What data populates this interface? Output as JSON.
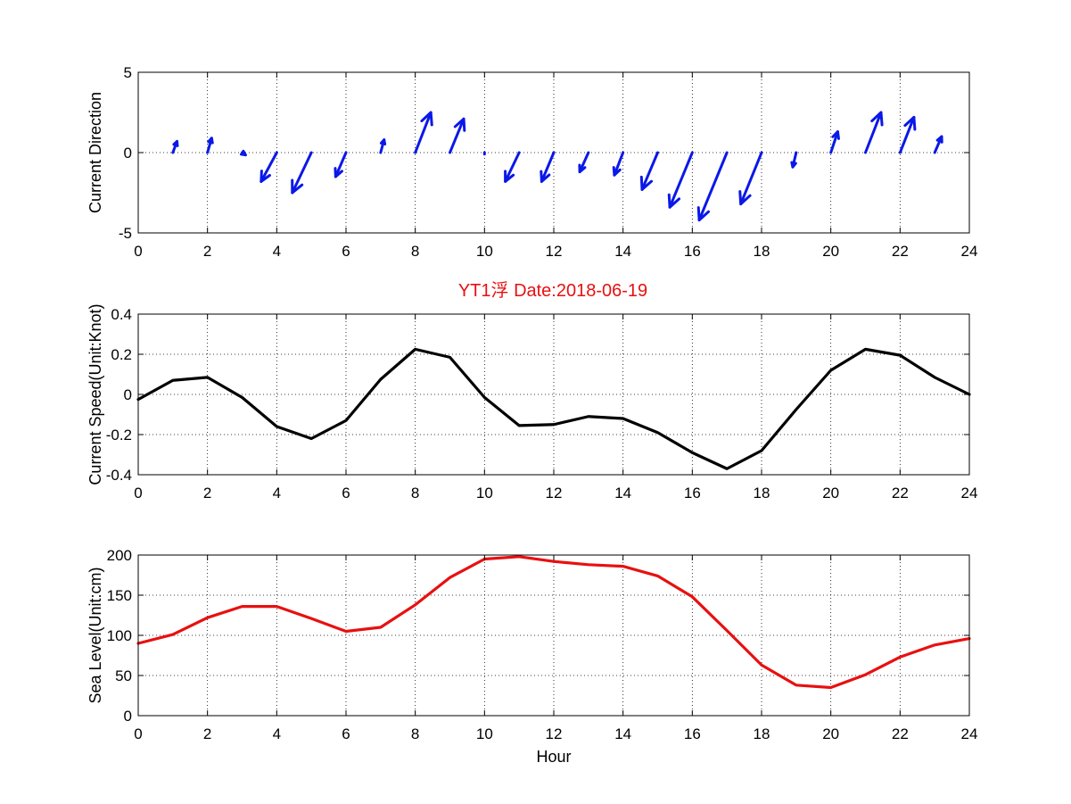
{
  "figure": {
    "title": "YT1浮   Date:2018-06-19",
    "title_color": "#e81010"
  },
  "chart_data": [
    {
      "type": "quiver",
      "ylabel": "Current Direction",
      "xlabel": "",
      "xlim": [
        0,
        24
      ],
      "ylim": [
        -5,
        5
      ],
      "xticks": [
        "0",
        "2",
        "4",
        "6",
        "8",
        "10",
        "12",
        "14",
        "16",
        "18",
        "20",
        "22",
        "24"
      ],
      "yticks": [
        "-5",
        "0",
        "5"
      ],
      "grid": true,
      "color": "#0a18e8",
      "vectors": [
        {
          "x": 1,
          "u": 0.12,
          "v": 0.7
        },
        {
          "x": 2,
          "u": 0.12,
          "v": 0.9
        },
        {
          "x": 3,
          "u": 0.1,
          "v": -0.15
        },
        {
          "x": 4,
          "u": -0.45,
          "v": -1.8
        },
        {
          "x": 5,
          "u": -0.55,
          "v": -2.5
        },
        {
          "x": 6,
          "u": -0.3,
          "v": -1.5
        },
        {
          "x": 7,
          "u": 0.1,
          "v": 0.8
        },
        {
          "x": 8,
          "u": 0.45,
          "v": 2.5
        },
        {
          "x": 9,
          "u": 0.4,
          "v": 2.1
        },
        {
          "x": 10,
          "u": 0.0,
          "v": -0.1
        },
        {
          "x": 11,
          "u": -0.4,
          "v": -1.8
        },
        {
          "x": 12,
          "u": -0.35,
          "v": -1.8
        },
        {
          "x": 13,
          "u": -0.25,
          "v": -1.2
        },
        {
          "x": 14,
          "u": -0.25,
          "v": -1.4
        },
        {
          "x": 15,
          "u": -0.45,
          "v": -2.3
        },
        {
          "x": 16,
          "u": -0.65,
          "v": -3.4
        },
        {
          "x": 17,
          "u": -0.8,
          "v": -4.2
        },
        {
          "x": 18,
          "u": -0.6,
          "v": -3.2
        },
        {
          "x": 19,
          "u": -0.1,
          "v": -0.9
        },
        {
          "x": 20,
          "u": 0.2,
          "v": 1.3
        },
        {
          "x": 21,
          "u": 0.45,
          "v": 2.5
        },
        {
          "x": 22,
          "u": 0.4,
          "v": 2.2
        },
        {
          "x": 23,
          "u": 0.2,
          "v": 1.0
        }
      ]
    },
    {
      "type": "line",
      "ylabel": "Current Speed(Unit:Knot)",
      "xlabel": "",
      "xlim": [
        0,
        24
      ],
      "ylim": [
        -0.4,
        0.4
      ],
      "xticks": [
        "0",
        "2",
        "4",
        "6",
        "8",
        "10",
        "12",
        "14",
        "16",
        "18",
        "20",
        "22",
        "24"
      ],
      "yticks": [
        "-0.4",
        "-0.2",
        "0",
        "0.2",
        "0.4"
      ],
      "grid": true,
      "color": "#000000",
      "x": [
        0,
        1,
        2,
        3,
        4,
        5,
        6,
        7,
        8,
        9,
        10,
        11,
        12,
        13,
        14,
        15,
        16,
        17,
        18,
        19,
        20,
        21,
        22,
        23,
        24
      ],
      "y": [
        -0.025,
        0.07,
        0.085,
        -0.015,
        -0.16,
        -0.22,
        -0.13,
        0.075,
        0.225,
        0.185,
        -0.015,
        -0.155,
        -0.15,
        -0.11,
        -0.12,
        -0.19,
        -0.29,
        -0.37,
        -0.28,
        -0.075,
        0.12,
        0.225,
        0.195,
        0.085,
        0.0
      ]
    },
    {
      "type": "line",
      "ylabel": "Sea Level(Unit:cm)",
      "xlabel": "Hour",
      "xlim": [
        0,
        24
      ],
      "ylim": [
        0,
        200
      ],
      "xticks": [
        "0",
        "2",
        "4",
        "6",
        "8",
        "10",
        "12",
        "14",
        "16",
        "18",
        "20",
        "22",
        "24"
      ],
      "yticks": [
        "0",
        "50",
        "100",
        "150",
        "200"
      ],
      "grid": true,
      "color": "#e81010",
      "x": [
        0,
        1,
        2,
        3,
        4,
        5,
        6,
        7,
        8,
        9,
        10,
        11,
        12,
        13,
        14,
        15,
        16,
        17,
        18,
        19,
        20,
        21,
        22,
        23,
        24
      ],
      "y": [
        90,
        101,
        122,
        136,
        136,
        121,
        105,
        110,
        138,
        172,
        195,
        198,
        192,
        188,
        186,
        174,
        148,
        106,
        63,
        38,
        35,
        51,
        73,
        88,
        96
      ]
    }
  ]
}
